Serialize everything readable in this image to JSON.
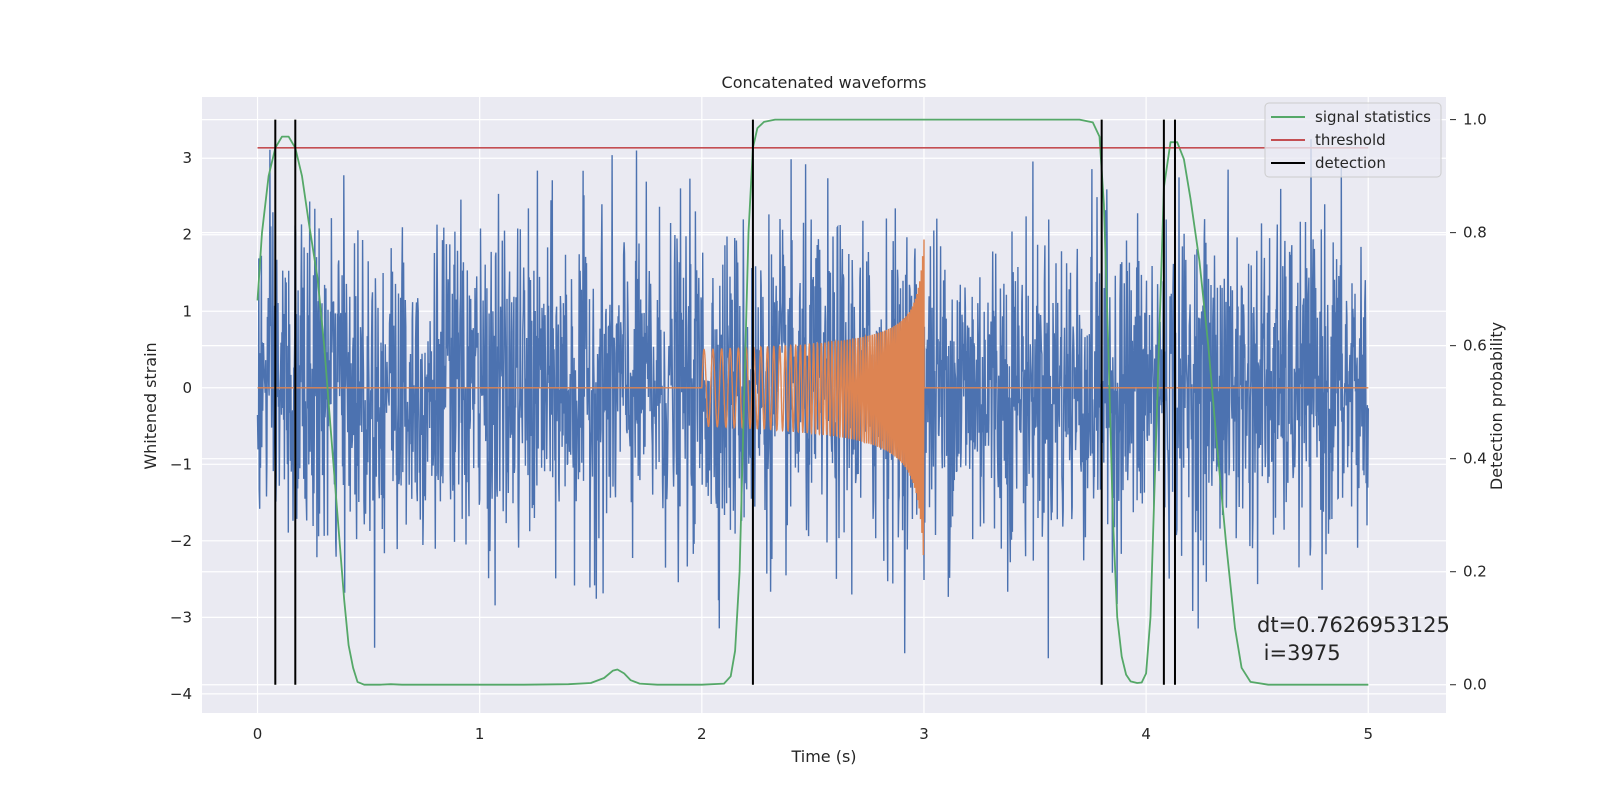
{
  "chart_data": {
    "type": "line",
    "title": "Concatenated waveforms",
    "xlabel": "Time (s)",
    "ylabel": "Whitened strain",
    "y2label": "Detection probability",
    "xlim": [
      -0.25,
      5.35
    ],
    "ylim": [
      -4.25,
      3.8
    ],
    "y2lim": [
      -0.05,
      1.04
    ],
    "x_ticks": [
      0,
      1,
      2,
      3,
      4,
      5
    ],
    "y_ticks": [
      -4,
      -3,
      -2,
      -1,
      0,
      1,
      2,
      3
    ],
    "y2_ticks": [
      0.0,
      0.2,
      0.4,
      0.6,
      0.8,
      1.0
    ],
    "x_tick_labels": [
      "0",
      "1",
      "2",
      "3",
      "4",
      "5"
    ],
    "y_tick_labels": [
      "−4",
      "−3",
      "−2",
      "−1",
      "0",
      "1",
      "2",
      "3"
    ],
    "y2_tick_labels": [
      "0.0",
      "0.2",
      "0.4",
      "0.6",
      "0.8",
      "1.0"
    ],
    "grid": true,
    "legend_position": "top-right",
    "legend": [
      "signal statistics",
      "threshold",
      "detection"
    ],
    "series": [
      {
        "name": "",
        "axis": "left",
        "kind": "noise",
        "color": "#4c72b0",
        "x_range": [
          0,
          5
        ],
        "typical_amplitude": 1.1,
        "max": 3.25,
        "min": -3.9
      },
      {
        "name": "",
        "axis": "left",
        "kind": "chirp",
        "color": "#dd8452",
        "x_range": [
          0,
          5
        ],
        "chirp_start": 2.0,
        "chirp_end": 3.0,
        "amplitude_start": 0.5,
        "amplitude_peak_pos": 2.0,
        "amplitude_peak_neg": -2.4
      },
      {
        "name": "signal statistics",
        "axis": "right",
        "color": "#55a868",
        "x": [
          0.0,
          0.02,
          0.05,
          0.08,
          0.11,
          0.14,
          0.17,
          0.2,
          0.23,
          0.27,
          0.3,
          0.33,
          0.36,
          0.39,
          0.41,
          0.43,
          0.45,
          0.48,
          0.55,
          0.6,
          0.65,
          0.8,
          1.0,
          1.2,
          1.4,
          1.5,
          1.56,
          1.6,
          1.62,
          1.65,
          1.68,
          1.72,
          1.8,
          2.0,
          2.1,
          2.13,
          2.15,
          2.17,
          2.19,
          2.21,
          2.23,
          2.25,
          2.28,
          2.33,
          2.4,
          2.6,
          3.0,
          3.4,
          3.7,
          3.76,
          3.79,
          3.81,
          3.83,
          3.85,
          3.87,
          3.89,
          3.91,
          3.93,
          3.96,
          3.98,
          4.0,
          4.02,
          4.05,
          4.08,
          4.11,
          4.14,
          4.17,
          4.2,
          4.24,
          4.28,
          4.32,
          4.36,
          4.4,
          4.43,
          4.47,
          4.55,
          4.8,
          5.0
        ],
        "y": [
          0.68,
          0.8,
          0.9,
          0.95,
          0.97,
          0.97,
          0.95,
          0.9,
          0.82,
          0.72,
          0.6,
          0.45,
          0.3,
          0.15,
          0.07,
          0.03,
          0.005,
          0.0,
          0.0,
          0.001,
          0.0,
          0.0,
          0.0,
          0.0,
          0.001,
          0.003,
          0.012,
          0.025,
          0.027,
          0.02,
          0.008,
          0.002,
          0.0,
          0.0,
          0.002,
          0.015,
          0.06,
          0.2,
          0.5,
          0.8,
          0.95,
          0.985,
          0.996,
          1.0,
          1.0,
          1.0,
          1.0,
          1.0,
          1.0,
          0.995,
          0.97,
          0.85,
          0.6,
          0.3,
          0.12,
          0.05,
          0.018,
          0.006,
          0.003,
          0.004,
          0.02,
          0.12,
          0.5,
          0.88,
          0.96,
          0.96,
          0.93,
          0.86,
          0.75,
          0.6,
          0.42,
          0.25,
          0.1,
          0.03,
          0.005,
          0.0,
          0.0,
          0.0
        ]
      },
      {
        "name": "threshold",
        "axis": "right",
        "color": "#c44e52",
        "x": [
          0,
          5
        ],
        "y": [
          0.95,
          0.95
        ]
      },
      {
        "name": "detection",
        "axis": "right",
        "color": "#000000",
        "vlines": [
          0.08,
          0.17,
          2.23,
          3.8,
          4.08,
          4.13
        ]
      }
    ],
    "annotations": [
      "dt=0.7626953125",
      " i=3975"
    ]
  }
}
